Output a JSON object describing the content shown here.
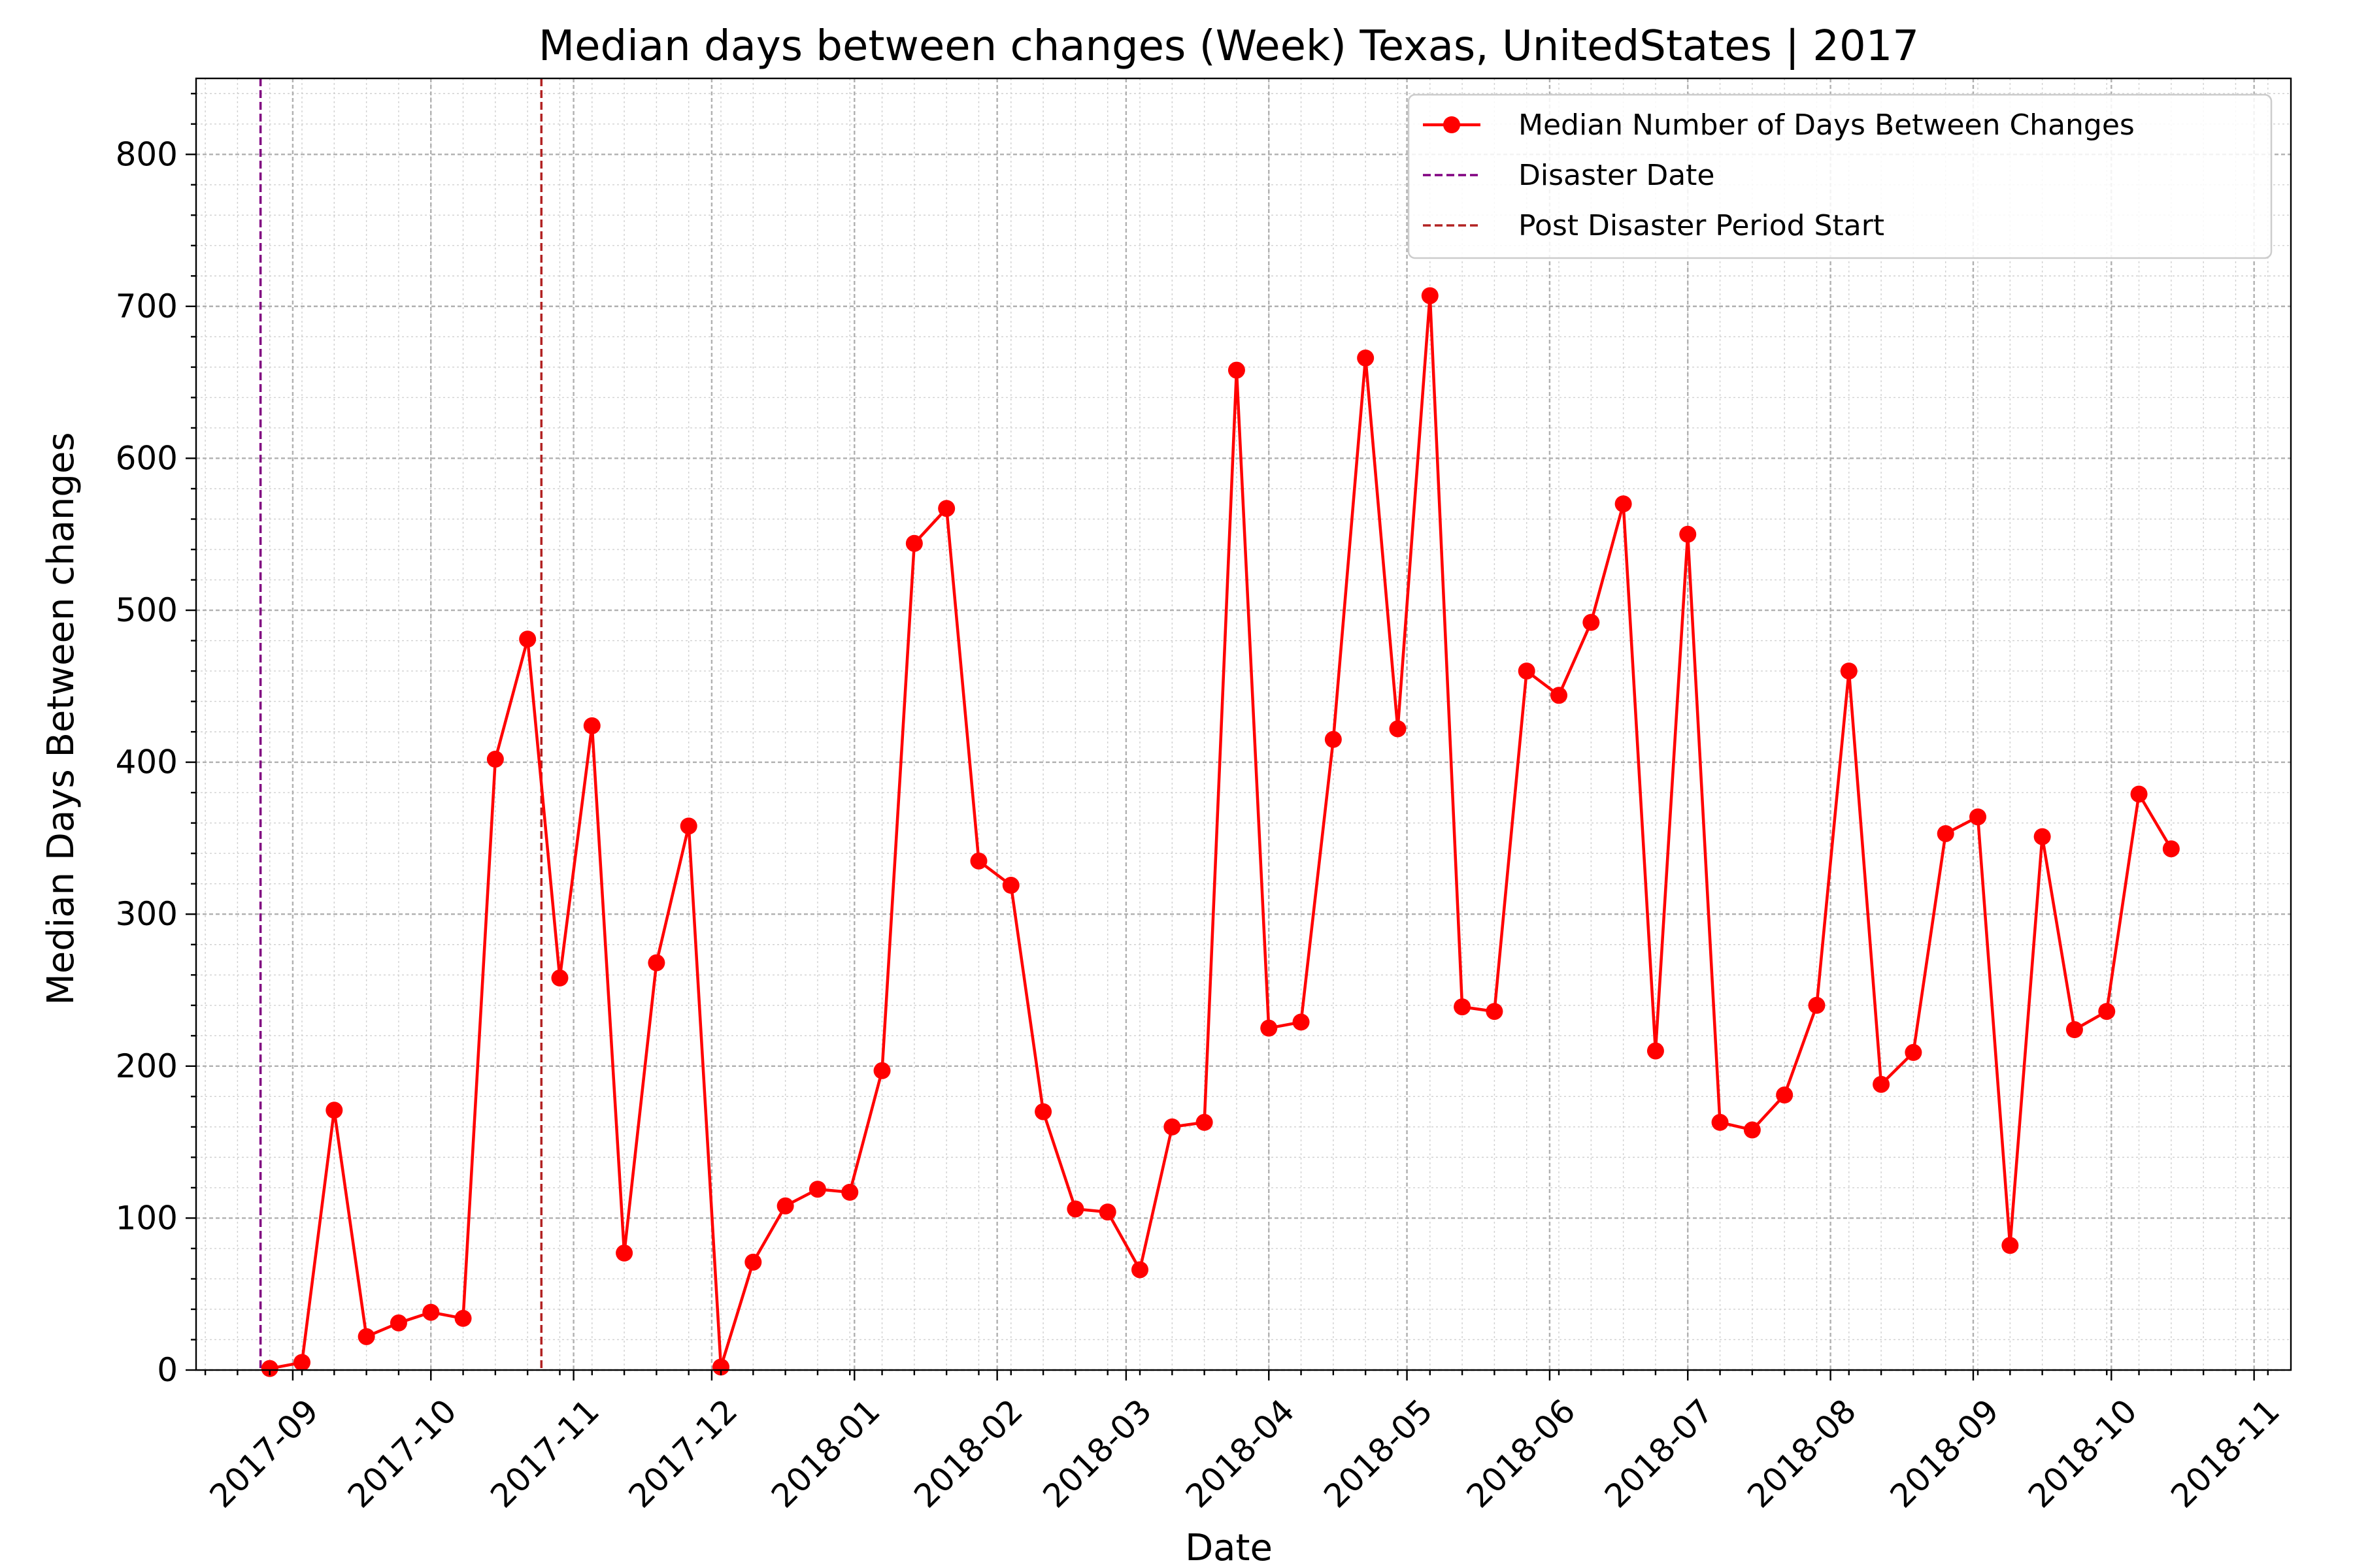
{
  "chart_data": {
    "type": "line",
    "title": "Median days between changes (Week) Texas, UnitedStates | 2017",
    "xlabel": "Date",
    "ylabel": "Median Days Between changes",
    "ylim": [
      0,
      850
    ],
    "xlim": [
      "2017-08-11",
      "2018-11-09"
    ],
    "y_ticks": [
      0,
      100,
      200,
      300,
      400,
      500,
      600,
      700,
      800
    ],
    "x_ticks": [
      "2017-09",
      "2017-10",
      "2017-11",
      "2017-12",
      "2018-01",
      "2018-02",
      "2018-03",
      "2018-04",
      "2018-05",
      "2018-06",
      "2018-07",
      "2018-08",
      "2018-09",
      "2018-10",
      "2018-11"
    ],
    "grid": true,
    "legend_position": "top-right",
    "colors": {
      "series": "#ff0000",
      "disaster": "#800080",
      "post": "#b22222"
    },
    "series": [
      {
        "name": "Median Number of Days Between Changes",
        "x": [
          "2017-08-27",
          "2017-09-03",
          "2017-09-10",
          "2017-09-17",
          "2017-09-24",
          "2017-10-01",
          "2017-10-08",
          "2017-10-15",
          "2017-10-22",
          "2017-10-29",
          "2017-11-05",
          "2017-11-12",
          "2017-11-19",
          "2017-11-26",
          "2017-12-03",
          "2017-12-10",
          "2017-12-17",
          "2017-12-24",
          "2017-12-31",
          "2018-01-07",
          "2018-01-14",
          "2018-01-21",
          "2018-01-28",
          "2018-02-04",
          "2018-02-11",
          "2018-02-18",
          "2018-02-25",
          "2018-03-04",
          "2018-03-11",
          "2018-03-18",
          "2018-03-25",
          "2018-04-01",
          "2018-04-08",
          "2018-04-15",
          "2018-04-22",
          "2018-04-29",
          "2018-05-06",
          "2018-05-13",
          "2018-05-20",
          "2018-05-27",
          "2018-06-03",
          "2018-06-10",
          "2018-06-17",
          "2018-06-24",
          "2018-07-01",
          "2018-07-08",
          "2018-07-15",
          "2018-07-22",
          "2018-07-29",
          "2018-08-05",
          "2018-08-12",
          "2018-08-19",
          "2018-08-26",
          "2018-09-02",
          "2018-09-09",
          "2018-09-16",
          "2018-09-23",
          "2018-09-30",
          "2018-10-07",
          "2018-10-14"
        ],
        "y": [
          1,
          5,
          171,
          22,
          31,
          38,
          34,
          402,
          481,
          258,
          424,
          77,
          268,
          358,
          2,
          71,
          108,
          119,
          117,
          197,
          544,
          567,
          335,
          319,
          170,
          106,
          104,
          66,
          160,
          163,
          658,
          225,
          229,
          415,
          666,
          422,
          707,
          239,
          236,
          460,
          444,
          492,
          570,
          210,
          550,
          163,
          158,
          181,
          240,
          460,
          188,
          209,
          353,
          364,
          82,
          351,
          224,
          236,
          379,
          343
        ]
      }
    ],
    "vlines": [
      {
        "name": "Disaster Date",
        "x": "2017-08-25",
        "style": "dashed"
      },
      {
        "name": "Post Disaster Period Start",
        "x": "2017-10-25",
        "style": "dashed"
      }
    ]
  }
}
